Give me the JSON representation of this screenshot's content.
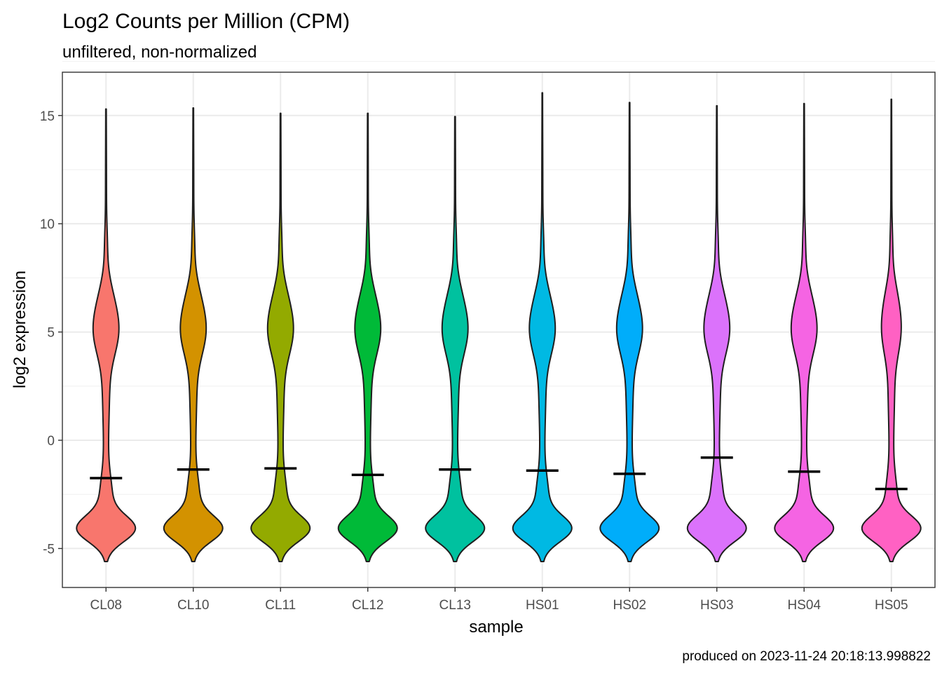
{
  "chart_data": {
    "type": "violin",
    "title": "Log2 Counts per Million (CPM)",
    "subtitle": "unfiltered, non-normalized",
    "xlabel": "sample",
    "ylabel": "log2 expression",
    "caption": "produced on 2023-11-24 20:18:13.998822",
    "ylim": [
      -6.8,
      17
    ],
    "yticks": [
      -5,
      0,
      5,
      10,
      15
    ],
    "ytick_labels": [
      "-5",
      "0",
      "5",
      "10",
      "15"
    ],
    "grid": true,
    "legend": "none",
    "categories": [
      "CL08",
      "CL10",
      "CL11",
      "CL12",
      "CL13",
      "HS01",
      "HS02",
      "HS03",
      "HS04",
      "HS05"
    ],
    "series": [
      {
        "sample": "CL08",
        "color": "#F8766D",
        "min": -5.6,
        "max": 15.3,
        "median": -1.75
      },
      {
        "sample": "CL10",
        "color": "#D39200",
        "min": -5.6,
        "max": 15.35,
        "median": -1.35
      },
      {
        "sample": "CL11",
        "color": "#93AA00",
        "min": -5.6,
        "max": 15.1,
        "median": -1.3
      },
      {
        "sample": "CL12",
        "color": "#00BA38",
        "min": -5.6,
        "max": 15.1,
        "median": -1.6
      },
      {
        "sample": "CL13",
        "color": "#00C19F",
        "min": -5.6,
        "max": 14.95,
        "median": -1.35
      },
      {
        "sample": "HS01",
        "color": "#00B9E3",
        "min": -5.6,
        "max": 16.05,
        "median": -1.4
      },
      {
        "sample": "HS02",
        "color": "#00ADFA",
        "min": -5.6,
        "max": 15.6,
        "median": -1.55
      },
      {
        "sample": "HS03",
        "color": "#DB72FB",
        "min": -5.6,
        "max": 15.45,
        "median": -0.8
      },
      {
        "sample": "HS04",
        "color": "#F564E3",
        "min": -5.6,
        "max": 15.55,
        "median": -1.45
      },
      {
        "sample": "HS05",
        "color": "#FF61C3",
        "min": -5.6,
        "max": 15.75,
        "median": -2.25
      }
    ]
  }
}
